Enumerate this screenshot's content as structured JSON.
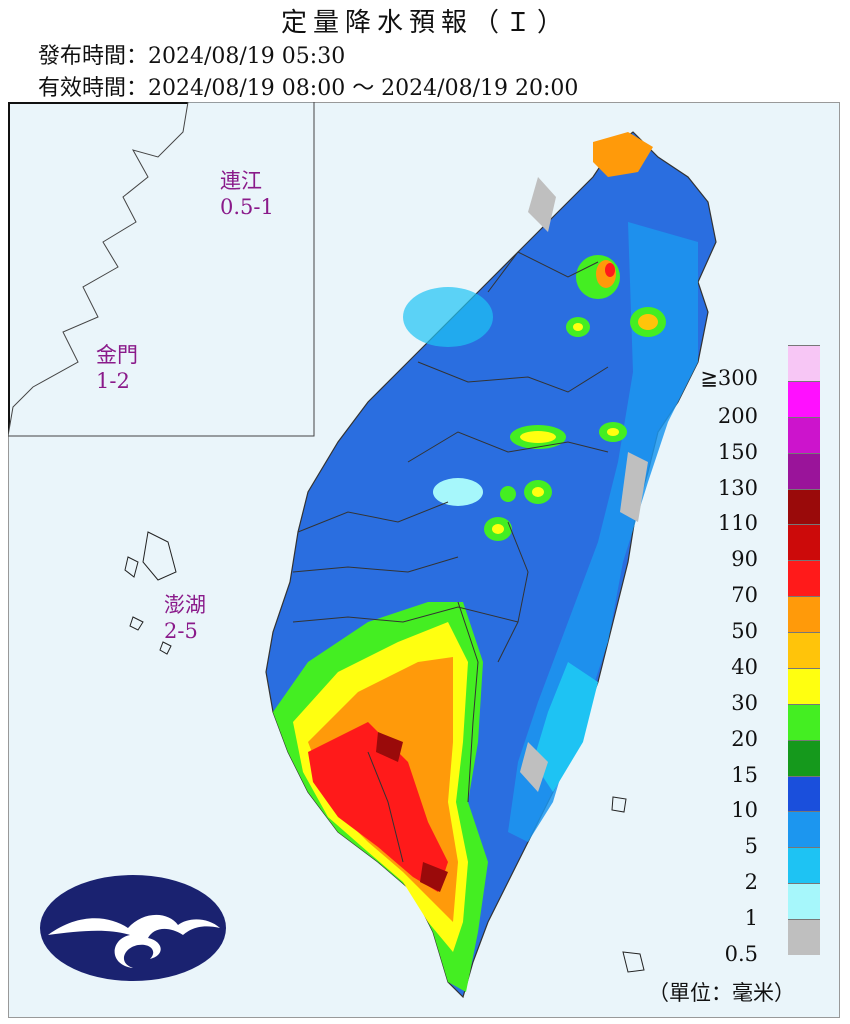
{
  "header": {
    "title": "定量降水預報（Ｉ）",
    "issue_label": "發布時間：2024/08/19 05:30",
    "valid_label": "有效時間：2024/08/19 08:00 ～ 2024/08/19 20:00"
  },
  "islands": {
    "matsu": {
      "name": "連江",
      "range": "0.5-1"
    },
    "kinmen": {
      "name": "金門",
      "range": "1-2"
    },
    "penghu": {
      "name": "澎湖",
      "range": "2-5"
    }
  },
  "legend": {
    "top_label": "≧300",
    "ticks": [
      "200",
      "150",
      "130",
      "110",
      "90",
      "70",
      "50",
      "40",
      "30",
      "20",
      "15",
      "10",
      "5",
      "2",
      "1",
      "0.5"
    ],
    "colors": [
      "#f7c6f5",
      "#ff10ff",
      "#cc14cc",
      "#9a149a",
      "#9a0a0a",
      "#cc0a0a",
      "#ff1a1a",
      "#ff9a0a",
      "#ffc40a",
      "#ffff10",
      "#44ee22",
      "#15991c",
      "#1a4fdc",
      "#1c96ef",
      "#1ec3f3",
      "#a6f7fb",
      "#bfbfbf"
    ],
    "unit": "（單位：毫米）"
  },
  "logo_icon": "cwa-logo-icon"
}
